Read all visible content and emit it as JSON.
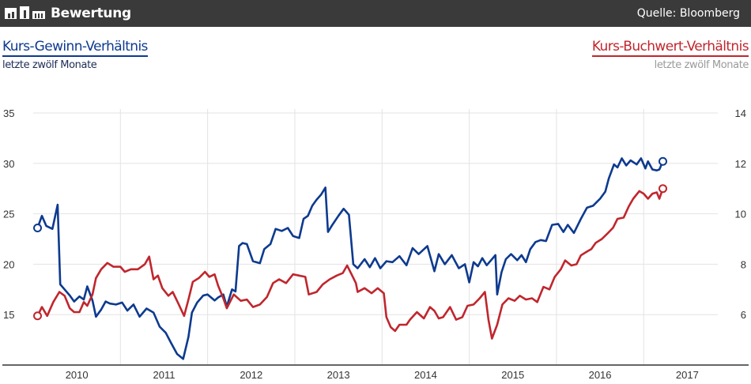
{
  "header": {
    "title": "Bewertung",
    "source": "Quelle: Bloomberg",
    "logo_icon": "bar-chart-logo-icon"
  },
  "left_series": {
    "title": "Kurs-Gewinn-Verhältnis",
    "subtitle": "letzte zwölf Monate",
    "color": "#0d3a8f"
  },
  "right_series": {
    "title": "Kurs-Buchwert-Verhältnis",
    "subtitle": "letzte zwölf Monate",
    "color": "#c0262d"
  },
  "chart_data": {
    "type": "line",
    "x_ticks": [
      "2010",
      "2011",
      "2012",
      "2013",
      "2014",
      "2015",
      "2016",
      "2017"
    ],
    "x_range": [
      2009.5,
      2017.35
    ],
    "y_left": {
      "range": [
        10,
        35
      ],
      "ticks": [
        "15",
        "20",
        "25",
        "30",
        "35"
      ]
    },
    "y_right": {
      "range": [
        4,
        14
      ],
      "ticks": [
        "6",
        "8",
        "10",
        "12",
        "14"
      ]
    },
    "grid": true,
    "series": [
      {
        "name": "Kurs-Gewinn-Verhältnis",
        "axis": "left",
        "color": "#0d3a8f",
        "points": [
          [
            2009.55,
            23.6
          ],
          [
            2009.6,
            24.8
          ],
          [
            2009.65,
            23.8
          ],
          [
            2009.72,
            23.5
          ],
          [
            2009.78,
            25.9
          ],
          [
            2009.81,
            18.0
          ],
          [
            2009.86,
            17.5
          ],
          [
            2009.92,
            16.9
          ],
          [
            2009.97,
            16.3
          ],
          [
            2010.03,
            16.8
          ],
          [
            2010.08,
            16.5
          ],
          [
            2010.12,
            17.8
          ],
          [
            2010.18,
            16.4
          ],
          [
            2010.22,
            14.8
          ],
          [
            2010.28,
            15.5
          ],
          [
            2010.33,
            16.3
          ],
          [
            2010.38,
            16.1
          ],
          [
            2010.45,
            16.0
          ],
          [
            2010.52,
            16.2
          ],
          [
            2010.58,
            15.4
          ],
          [
            2010.65,
            16.0
          ],
          [
            2010.72,
            14.8
          ],
          [
            2010.8,
            15.6
          ],
          [
            2010.88,
            15.2
          ],
          [
            2010.95,
            13.8
          ],
          [
            2011.02,
            13.2
          ],
          [
            2011.08,
            12.2
          ],
          [
            2011.15,
            11.1
          ],
          [
            2011.22,
            10.6
          ],
          [
            2011.28,
            12.8
          ],
          [
            2011.32,
            15.2
          ],
          [
            2011.38,
            16.2
          ],
          [
            2011.45,
            16.9
          ],
          [
            2011.5,
            17.0
          ],
          [
            2011.58,
            16.4
          ],
          [
            2011.62,
            16.7
          ],
          [
            2011.68,
            17.0
          ],
          [
            2011.72,
            15.8
          ],
          [
            2011.78,
            17.5
          ],
          [
            2011.82,
            17.3
          ],
          [
            2011.86,
            21.8
          ],
          [
            2011.9,
            22.1
          ],
          [
            2011.95,
            22.0
          ],
          [
            2012.02,
            20.3
          ],
          [
            2012.1,
            20.1
          ],
          [
            2012.15,
            21.5
          ],
          [
            2012.22,
            22.0
          ],
          [
            2012.28,
            23.5
          ],
          [
            2012.35,
            23.3
          ],
          [
            2012.42,
            23.6
          ],
          [
            2012.48,
            22.8
          ],
          [
            2012.55,
            22.6
          ],
          [
            2012.6,
            24.5
          ],
          [
            2012.65,
            24.8
          ],
          [
            2012.7,
            25.8
          ],
          [
            2012.75,
            26.4
          ],
          [
            2012.8,
            26.9
          ],
          [
            2012.85,
            27.6
          ],
          [
            2012.88,
            23.2
          ],
          [
            2012.93,
            23.9
          ],
          [
            2013.0,
            24.8
          ],
          [
            2013.06,
            25.5
          ],
          [
            2013.12,
            24.9
          ],
          [
            2013.17,
            20.0
          ],
          [
            2013.22,
            19.6
          ],
          [
            2013.3,
            20.5
          ],
          [
            2013.36,
            19.7
          ],
          [
            2013.42,
            20.6
          ],
          [
            2013.48,
            19.6
          ],
          [
            2013.55,
            20.3
          ],
          [
            2013.62,
            20.2
          ],
          [
            2013.7,
            20.8
          ],
          [
            2013.78,
            19.9
          ],
          [
            2013.85,
            21.6
          ],
          [
            2013.92,
            21.0
          ],
          [
            2014.02,
            21.8
          ],
          [
            2014.1,
            19.3
          ],
          [
            2014.15,
            21.0
          ],
          [
            2014.22,
            20.0
          ],
          [
            2014.3,
            20.9
          ],
          [
            2014.38,
            19.6
          ],
          [
            2014.45,
            20.0
          ],
          [
            2014.5,
            18.2
          ],
          [
            2014.55,
            20.2
          ],
          [
            2014.6,
            19.8
          ],
          [
            2014.65,
            20.6
          ],
          [
            2014.7,
            19.9
          ],
          [
            2014.75,
            20.4
          ],
          [
            2014.8,
            20.9
          ],
          [
            2014.82,
            17.0
          ],
          [
            2014.87,
            19.2
          ],
          [
            2014.92,
            20.5
          ],
          [
            2014.98,
            21.0
          ],
          [
            2015.05,
            20.4
          ],
          [
            2015.1,
            20.9
          ],
          [
            2015.15,
            20.2
          ],
          [
            2015.2,
            21.5
          ],
          [
            2015.26,
            22.2
          ],
          [
            2015.32,
            22.4
          ],
          [
            2015.38,
            22.3
          ],
          [
            2015.45,
            23.9
          ],
          [
            2015.52,
            24.0
          ],
          [
            2015.58,
            23.2
          ],
          [
            2015.63,
            23.9
          ],
          [
            2015.7,
            23.1
          ],
          [
            2015.78,
            24.5
          ],
          [
            2015.85,
            25.6
          ],
          [
            2015.92,
            25.8
          ],
          [
            2016.0,
            26.5
          ],
          [
            2016.06,
            27.2
          ],
          [
            2016.1,
            28.5
          ],
          [
            2016.16,
            29.9
          ],
          [
            2016.2,
            29.6
          ],
          [
            2016.25,
            30.5
          ],
          [
            2016.3,
            29.8
          ],
          [
            2016.35,
            30.3
          ],
          [
            2016.42,
            29.9
          ],
          [
            2016.47,
            30.5
          ],
          [
            2016.52,
            29.5
          ],
          [
            2016.55,
            30.2
          ],
          [
            2016.6,
            29.4
          ],
          [
            2016.65,
            29.3
          ],
          [
            2016.68,
            29.4
          ],
          [
            2016.72,
            30.2
          ]
        ]
      },
      {
        "name": "Kurs-Buchwert-Verhältnis",
        "axis": "right",
        "color": "#c0262d",
        "points": [
          [
            2009.55,
            5.95
          ],
          [
            2009.6,
            6.3
          ],
          [
            2009.66,
            5.95
          ],
          [
            2009.73,
            6.5
          ],
          [
            2009.8,
            6.9
          ],
          [
            2009.86,
            6.75
          ],
          [
            2009.92,
            6.25
          ],
          [
            2009.97,
            6.1
          ],
          [
            2010.03,
            6.1
          ],
          [
            2010.08,
            6.5
          ],
          [
            2010.12,
            6.35
          ],
          [
            2010.18,
            6.8
          ],
          [
            2010.22,
            7.45
          ],
          [
            2010.28,
            7.8
          ],
          [
            2010.35,
            8.05
          ],
          [
            2010.42,
            7.9
          ],
          [
            2010.5,
            7.9
          ],
          [
            2010.55,
            7.7
          ],
          [
            2010.62,
            7.8
          ],
          [
            2010.7,
            7.8
          ],
          [
            2010.78,
            8.0
          ],
          [
            2010.83,
            8.3
          ],
          [
            2010.88,
            7.4
          ],
          [
            2010.93,
            7.55
          ],
          [
            2010.98,
            7.05
          ],
          [
            2011.05,
            6.75
          ],
          [
            2011.1,
            6.9
          ],
          [
            2011.17,
            6.4
          ],
          [
            2011.23,
            5.95
          ],
          [
            2011.28,
            6.6
          ],
          [
            2011.33,
            7.3
          ],
          [
            2011.4,
            7.45
          ],
          [
            2011.47,
            7.7
          ],
          [
            2011.52,
            7.5
          ],
          [
            2011.58,
            7.6
          ],
          [
            2011.62,
            7.15
          ],
          [
            2011.68,
            6.65
          ],
          [
            2011.72,
            6.25
          ],
          [
            2011.8,
            6.8
          ],
          [
            2011.88,
            6.55
          ],
          [
            2011.95,
            6.6
          ],
          [
            2012.02,
            6.3
          ],
          [
            2012.1,
            6.4
          ],
          [
            2012.18,
            6.7
          ],
          [
            2012.25,
            7.25
          ],
          [
            2012.32,
            7.4
          ],
          [
            2012.4,
            7.25
          ],
          [
            2012.48,
            7.6
          ],
          [
            2012.55,
            7.55
          ],
          [
            2012.62,
            7.5
          ],
          [
            2012.66,
            6.8
          ],
          [
            2012.75,
            6.9
          ],
          [
            2012.82,
            7.2
          ],
          [
            2012.9,
            7.4
          ],
          [
            2012.98,
            7.55
          ],
          [
            2013.05,
            7.65
          ],
          [
            2013.1,
            7.95
          ],
          [
            2013.15,
            7.6
          ],
          [
            2013.2,
            7.25
          ],
          [
            2013.22,
            6.9
          ],
          [
            2013.3,
            7.05
          ],
          [
            2013.38,
            6.85
          ],
          [
            2013.45,
            7.05
          ],
          [
            2013.52,
            6.85
          ],
          [
            2013.55,
            5.9
          ],
          [
            2013.6,
            5.5
          ],
          [
            2013.65,
            5.35
          ],
          [
            2013.7,
            5.6
          ],
          [
            2013.78,
            5.6
          ],
          [
            2013.82,
            5.8
          ],
          [
            2013.9,
            6.1
          ],
          [
            2013.98,
            5.85
          ],
          [
            2014.05,
            6.3
          ],
          [
            2014.1,
            6.15
          ],
          [
            2014.15,
            5.85
          ],
          [
            2014.2,
            5.9
          ],
          [
            2014.28,
            6.3
          ],
          [
            2014.35,
            5.8
          ],
          [
            2014.42,
            5.9
          ],
          [
            2014.48,
            6.35
          ],
          [
            2014.55,
            6.4
          ],
          [
            2014.62,
            6.65
          ],
          [
            2014.68,
            6.9
          ],
          [
            2014.72,
            5.8
          ],
          [
            2014.76,
            5.05
          ],
          [
            2014.82,
            5.6
          ],
          [
            2014.88,
            6.4
          ],
          [
            2014.95,
            6.65
          ],
          [
            2015.02,
            6.55
          ],
          [
            2015.08,
            6.75
          ],
          [
            2015.15,
            6.6
          ],
          [
            2015.22,
            6.65
          ],
          [
            2015.28,
            6.5
          ],
          [
            2015.35,
            7.1
          ],
          [
            2015.42,
            7.0
          ],
          [
            2015.48,
            7.5
          ],
          [
            2015.55,
            7.8
          ],
          [
            2015.6,
            8.15
          ],
          [
            2015.67,
            7.95
          ],
          [
            2015.73,
            8.0
          ],
          [
            2015.78,
            8.35
          ],
          [
            2015.85,
            8.5
          ],
          [
            2015.9,
            8.6
          ],
          [
            2015.95,
            8.85
          ],
          [
            2016.02,
            9.0
          ],
          [
            2016.08,
            9.2
          ],
          [
            2016.15,
            9.45
          ],
          [
            2016.2,
            9.8
          ],
          [
            2016.27,
            9.85
          ],
          [
            2016.33,
            10.3
          ],
          [
            2016.38,
            10.6
          ],
          [
            2016.45,
            10.9
          ],
          [
            2016.5,
            10.8
          ],
          [
            2016.55,
            10.6
          ],
          [
            2016.6,
            10.8
          ],
          [
            2016.65,
            10.85
          ],
          [
            2016.68,
            10.6
          ],
          [
            2016.72,
            11.0
          ]
        ]
      }
    ]
  }
}
